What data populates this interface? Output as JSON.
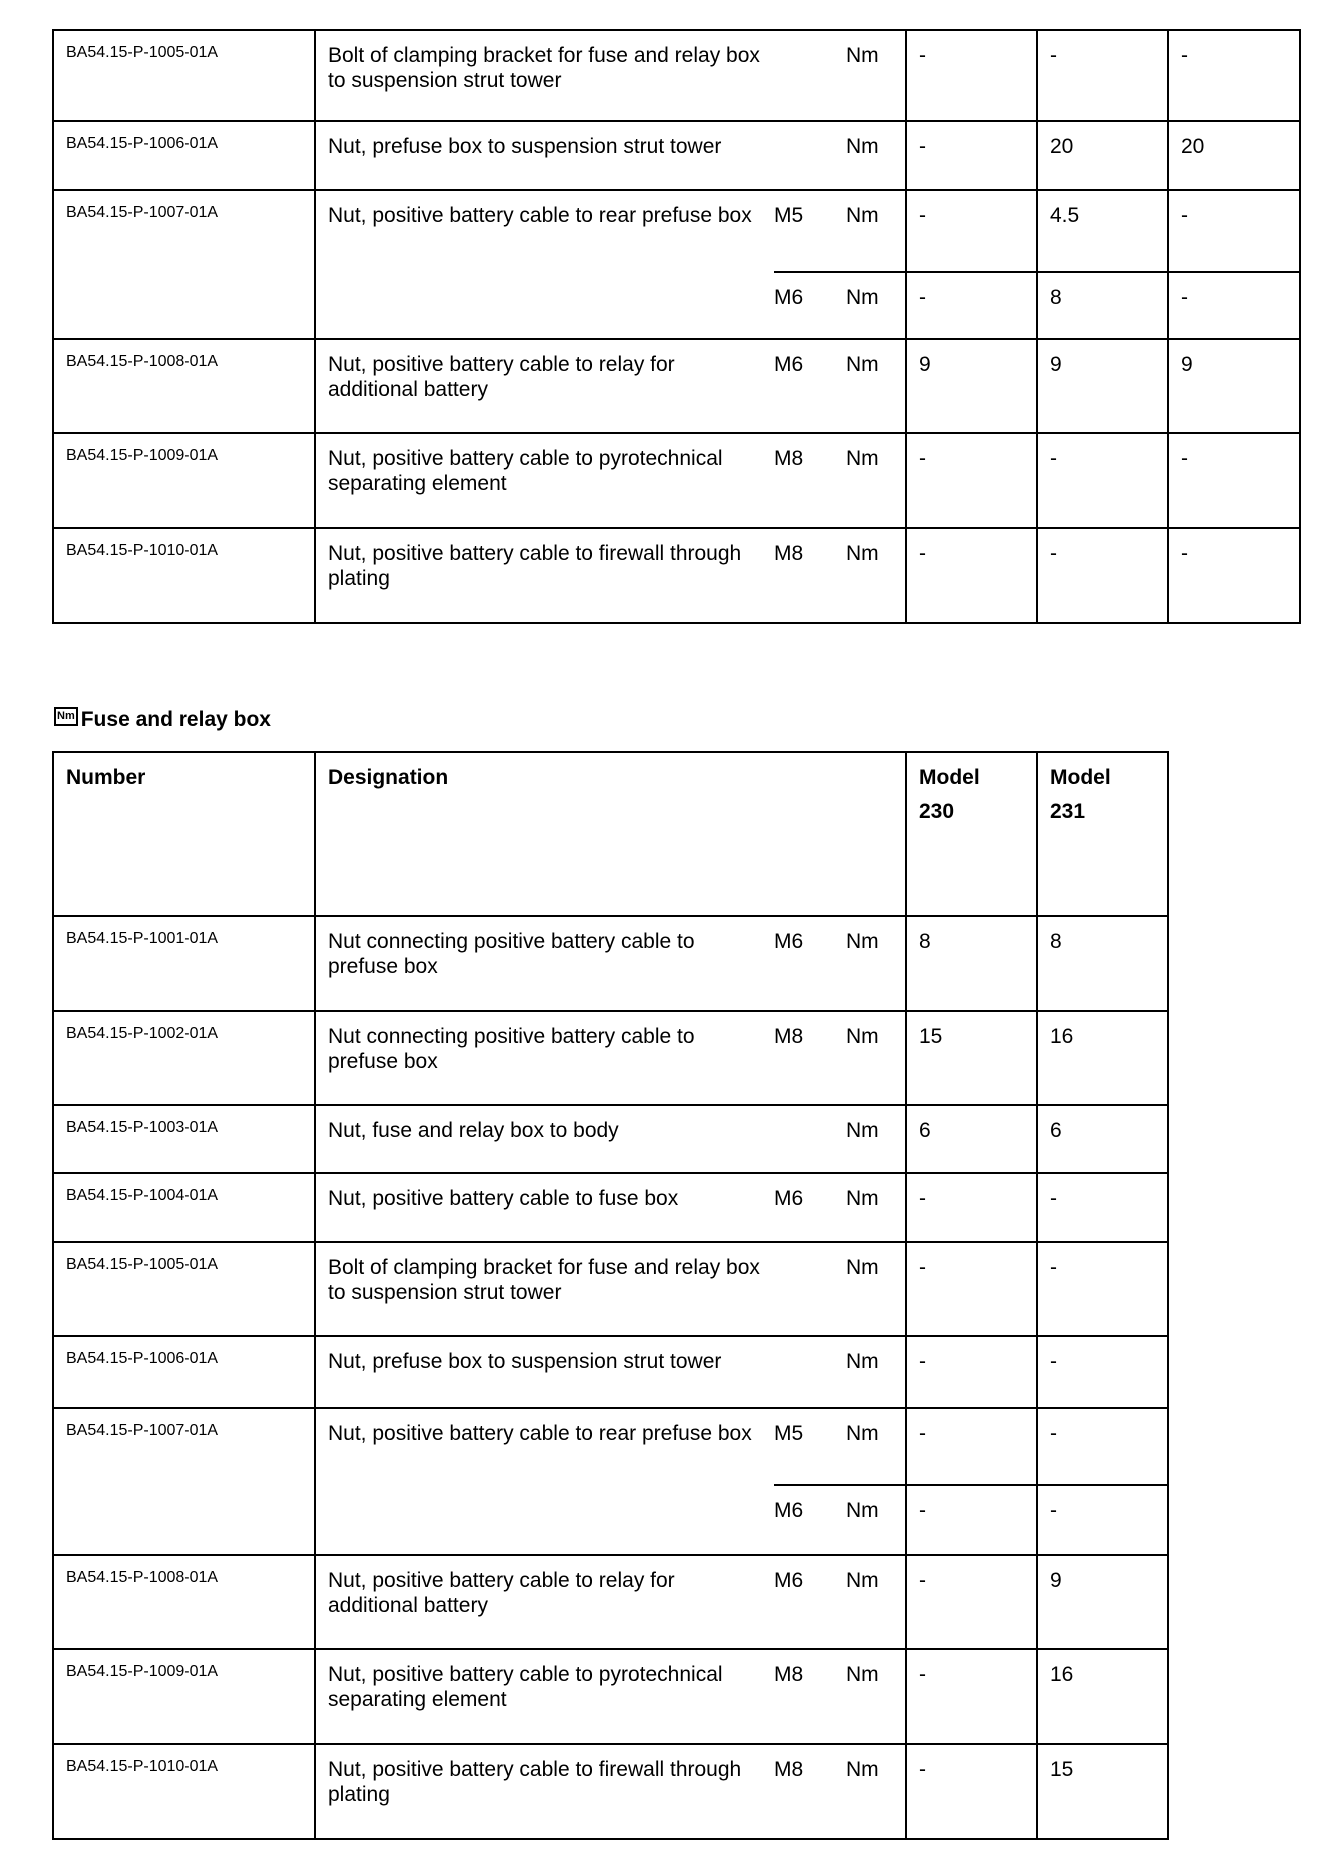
{
  "table1": {
    "rows": [
      {
        "number": "BA54.15-P-1005-01A",
        "designation": "Bolt of clamping bracket for fuse and relay box to suspension strut tower",
        "sub": [
          {
            "thread": "",
            "unit": "Nm",
            "values": [
              "-",
              "-",
              "-"
            ]
          }
        ]
      },
      {
        "number": "BA54.15-P-1006-01A",
        "designation": "Nut, prefuse box to suspension strut tower",
        "sub": [
          {
            "thread": "",
            "unit": "Nm",
            "values": [
              "-",
              "20",
              "20"
            ]
          }
        ]
      },
      {
        "number": "BA54.15-P-1007-01A",
        "designation": "Nut, positive battery cable to rear prefuse box",
        "sub": [
          {
            "thread": "M5",
            "unit": "Nm",
            "values": [
              "-",
              "4.5",
              "-"
            ]
          },
          {
            "thread": "M6",
            "unit": "Nm",
            "values": [
              "-",
              "8",
              "-"
            ]
          }
        ]
      },
      {
        "number": "BA54.15-P-1008-01A",
        "designation": "Nut, positive battery cable to relay for additional battery",
        "sub": [
          {
            "thread": "M6",
            "unit": "Nm",
            "values": [
              "9",
              "9",
              "9"
            ]
          }
        ]
      },
      {
        "number": "BA54.15-P-1009-01A",
        "designation": "Nut, positive battery cable to pyrotechnical separating element",
        "sub": [
          {
            "thread": "M8",
            "unit": "Nm",
            "values": [
              "-",
              "-",
              "-"
            ]
          }
        ]
      },
      {
        "number": "BA54.15-P-1010-01A",
        "designation": "Nut, positive battery cable to firewall through plating",
        "sub": [
          {
            "thread": "M8",
            "unit": "Nm",
            "values": [
              "-",
              "-",
              "-"
            ]
          }
        ]
      }
    ]
  },
  "section2": {
    "icon_label": "Nm",
    "title": "Fuse and relay box"
  },
  "table2": {
    "headers": {
      "number": "Number",
      "designation": "Designation",
      "models": [
        "Model\n230",
        "Model\n231"
      ]
    },
    "rows": [
      {
        "number": "BA54.15-P-1001-01A",
        "designation": "Nut connecting positive battery cable to prefuse box",
        "sub": [
          {
            "thread": "M6",
            "unit": "Nm",
            "values": [
              "8",
              "8"
            ]
          }
        ]
      },
      {
        "number": "BA54.15-P-1002-01A",
        "designation": "Nut connecting positive battery cable to prefuse box",
        "sub": [
          {
            "thread": "M8",
            "unit": "Nm",
            "values": [
              "15",
              "16"
            ]
          }
        ]
      },
      {
        "number": "BA54.15-P-1003-01A",
        "designation": "Nut, fuse and relay box to body",
        "sub": [
          {
            "thread": "",
            "unit": "Nm",
            "values": [
              "6",
              "6"
            ]
          }
        ]
      },
      {
        "number": "BA54.15-P-1004-01A",
        "designation": "Nut, positive battery cable to fuse box",
        "sub": [
          {
            "thread": "M6",
            "unit": "Nm",
            "values": [
              "-",
              "-"
            ]
          }
        ]
      },
      {
        "number": "BA54.15-P-1005-01A",
        "designation": "Bolt of clamping bracket for fuse and relay box to suspension strut tower",
        "sub": [
          {
            "thread": "",
            "unit": "Nm",
            "values": [
              "-",
              "-"
            ]
          }
        ]
      },
      {
        "number": "BA54.15-P-1006-01A",
        "designation": "Nut, prefuse box to suspension strut tower",
        "sub": [
          {
            "thread": "",
            "unit": "Nm",
            "values": [
              "-",
              "-"
            ]
          }
        ]
      },
      {
        "number": "BA54.15-P-1007-01A",
        "designation": "Nut, positive battery cable to rear prefuse box",
        "sub": [
          {
            "thread": "M5",
            "unit": "Nm",
            "values": [
              "-",
              "-"
            ]
          },
          {
            "thread": "M6",
            "unit": "Nm",
            "values": [
              "-",
              "-"
            ]
          }
        ]
      },
      {
        "number": "BA54.15-P-1008-01A",
        "designation": "Nut, positive battery cable to relay for additional battery",
        "sub": [
          {
            "thread": "M6",
            "unit": "Nm",
            "values": [
              "-",
              "9"
            ]
          }
        ]
      },
      {
        "number": "BA54.15-P-1009-01A",
        "designation": "Nut, positive battery cable to pyrotechnical separating element",
        "sub": [
          {
            "thread": "M8",
            "unit": "Nm",
            "values": [
              "-",
              "16"
            ]
          }
        ]
      },
      {
        "number": "BA54.15-P-1010-01A",
        "designation": "Nut, positive battery cable to firewall through plating",
        "sub": [
          {
            "thread": "M8",
            "unit": "Nm",
            "values": [
              "-",
              "15"
            ]
          }
        ]
      }
    ]
  }
}
